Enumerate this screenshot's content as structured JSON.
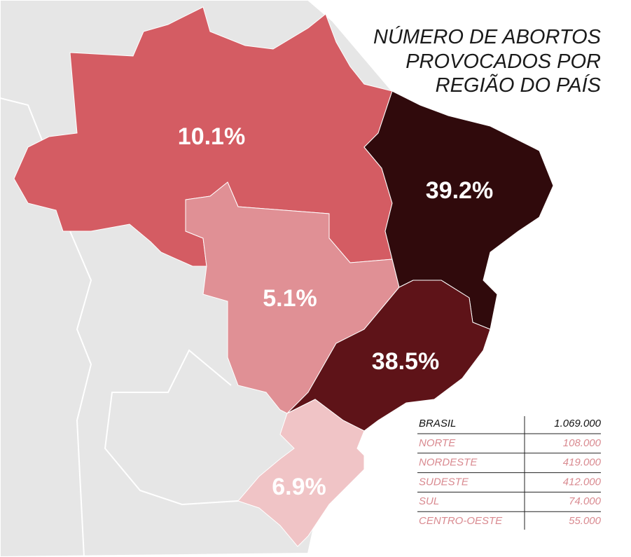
{
  "title": {
    "lines": [
      "NÚMERO DE ABORTOS",
      "PROVOCADOS POR",
      "REGIÃO DO PAÍS"
    ]
  },
  "map_labels": [
    "10.1%",
    "39.2%",
    "5.1%",
    "38.5%",
    "6.9%"
  ],
  "table": {
    "rows": [
      [
        "BRASIL",
        "1.069.000"
      ],
      [
        "NORTE",
        "108.000"
      ],
      [
        "NORDESTE",
        "419.000"
      ],
      [
        "SUDESTE",
        "412.000"
      ],
      [
        "SUL",
        "74.000"
      ],
      [
        "CENTRO-OESTE",
        "55.000"
      ]
    ]
  }
}
